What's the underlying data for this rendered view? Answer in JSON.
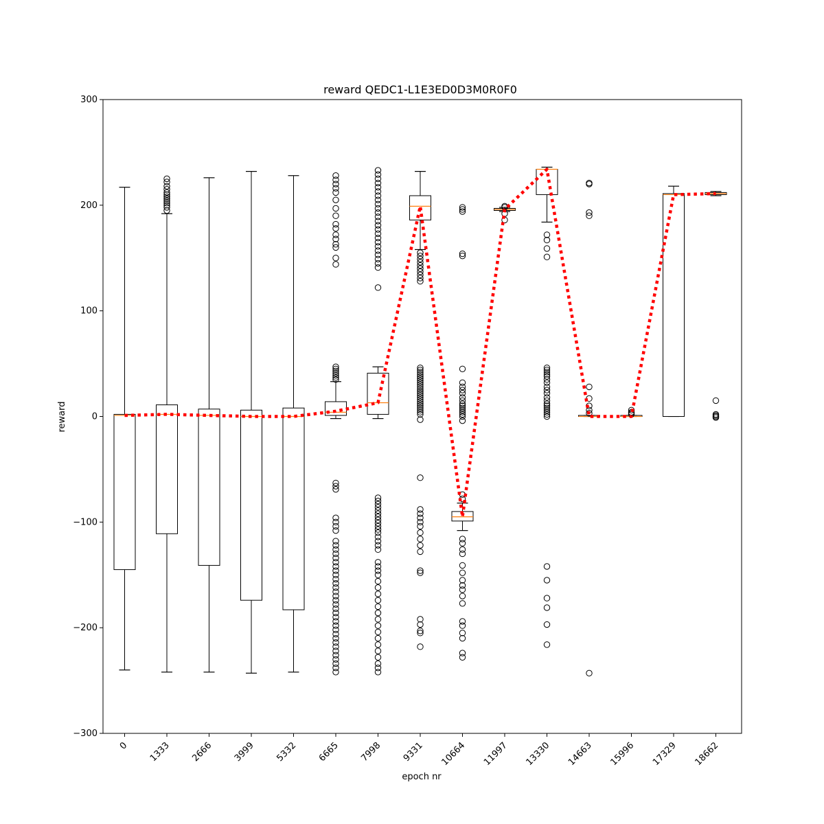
{
  "chart_data": {
    "type": "box",
    "title": "reward QEDC1-L1E3ED0D3M0R0F0",
    "xlabel": "epoch nr",
    "ylabel": "reward",
    "ylim": [
      -300,
      300
    ],
    "yticks": [
      -300,
      -200,
      -100,
      0,
      100,
      200,
      300
    ],
    "ytick_labels": [
      "−300",
      "−200",
      "−100",
      "0",
      "100",
      "200",
      "300"
    ],
    "categories": [
      "0",
      "1333",
      "2666",
      "3999",
      "5332",
      "6665",
      "7998",
      "9331",
      "10664",
      "11997",
      "13330",
      "14663",
      "15996",
      "17329",
      "18662"
    ],
    "boxes": [
      {
        "q1": -145,
        "median": 1,
        "q3": 2,
        "whisker_low": -240,
        "whisker_high": 217,
        "outliers": []
      },
      {
        "q1": -111,
        "median": 2,
        "q3": 11,
        "whisker_low": -242,
        "whisker_high": 192,
        "outliers": [
          195,
          198,
          200,
          202,
          204,
          206,
          208,
          210,
          212,
          215,
          218,
          222,
          225
        ]
      },
      {
        "q1": -141,
        "median": 1,
        "q3": 7,
        "whisker_low": -242,
        "whisker_high": 226,
        "outliers": []
      },
      {
        "q1": -174,
        "median": 0,
        "q3": 6,
        "whisker_low": -243,
        "whisker_high": 232,
        "outliers": []
      },
      {
        "q1": -183,
        "median": 0,
        "q3": 8,
        "whisker_low": -242,
        "whisker_high": 228,
        "outliers": []
      },
      {
        "q1": 1,
        "median": 4,
        "q3": 14,
        "whisker_low": -2,
        "whisker_high": 33,
        "outliers": [
          228,
          224,
          220,
          216,
          212,
          205,
          197,
          190,
          182,
          178,
          172,
          168,
          163,
          160,
          150,
          144,
          47,
          45,
          43,
          41,
          39,
          37,
          35,
          -63,
          -66,
          -69,
          -96,
          -100,
          -104,
          -108,
          -118,
          -122,
          -126,
          -130,
          -134,
          -138,
          -142,
          -146,
          -150,
          -154,
          -158,
          -162,
          -166,
          -170,
          -174,
          -178,
          -182,
          -186,
          -190,
          -194,
          -198,
          -202,
          -206,
          -210,
          -214,
          -218,
          -222,
          -226,
          -230,
          -234,
          -238,
          -242
        ]
      },
      {
        "q1": 2,
        "median": 13,
        "q3": 41,
        "whisker_low": -2,
        "whisker_high": 47,
        "outliers": [
          233,
          229,
          225,
          221,
          217,
          213,
          209,
          205,
          201,
          197,
          193,
          189,
          185,
          181,
          177,
          173,
          169,
          165,
          161,
          157,
          153,
          149,
          145,
          141,
          122,
          -77,
          -80,
          -83,
          -86,
          -89,
          -92,
          -95,
          -98,
          -101,
          -104,
          -107,
          -110,
          -114,
          -118,
          -122,
          -126,
          -138,
          -142,
          -146,
          -150,
          -156,
          -162,
          -168,
          -174,
          -180,
          -186,
          -192,
          -198,
          -204,
          -210,
          -216,
          -222,
          -228,
          -234,
          -238,
          -242
        ]
      },
      {
        "q1": 186,
        "median": 199,
        "q3": 209,
        "whisker_low": 158,
        "whisker_high": 232,
        "outliers": [
          155,
          152,
          149,
          146,
          143,
          140,
          137,
          134,
          131,
          128,
          46,
          44,
          42,
          40,
          38,
          36,
          34,
          32,
          30,
          28,
          26,
          24,
          22,
          20,
          18,
          16,
          14,
          12,
          10,
          8,
          6,
          4,
          2,
          -3,
          -58,
          -88,
          -92,
          -96,
          -100,
          -104,
          -110,
          -116,
          -122,
          -128,
          -146,
          -148,
          -192,
          -197,
          -203,
          -205,
          -218
        ]
      },
      {
        "q1": -99,
        "median": -95,
        "q3": -90,
        "whisker_low": -108,
        "whisker_high": -82,
        "outliers": [
          198,
          196,
          194,
          154,
          152,
          45,
          32,
          28,
          25,
          22,
          18,
          15,
          12,
          10,
          8,
          6,
          4,
          2,
          0,
          -4,
          -74,
          -78,
          -116,
          -120,
          -126,
          -130,
          -141,
          -148,
          -155,
          -160,
          -164,
          -170,
          -177,
          -194,
          -198,
          -205,
          -210,
          -224,
          -228
        ]
      },
      {
        "q1": 195,
        "median": 196,
        "q3": 197,
        "whisker_low": 194,
        "whisker_high": 198,
        "outliers": [
          186,
          192,
          198,
          199
        ]
      },
      {
        "q1": 210,
        "median": 234,
        "q3": 234,
        "whisker_low": 184,
        "whisker_high": 236,
        "outliers": [
          172,
          167,
          159,
          151,
          46,
          44,
          42,
          40,
          38,
          35,
          32,
          28,
          25,
          22,
          18,
          15,
          12,
          10,
          8,
          6,
          4,
          2,
          0,
          -142,
          -155,
          -172,
          -181,
          -197,
          -216
        ]
      },
      {
        "q1": 0,
        "median": 0,
        "q3": 1,
        "whisker_low": 0,
        "whisker_high": 1,
        "outliers": [
          221,
          220,
          193,
          190,
          28,
          17,
          10,
          6,
          3,
          -243
        ]
      },
      {
        "q1": 0,
        "median": 0,
        "q3": 1,
        "whisker_low": 0,
        "whisker_high": 1,
        "outliers": [
          6,
          4,
          3,
          2
        ]
      },
      {
        "q1": 0,
        "median": 210,
        "q3": 211,
        "whisker_low": 0,
        "whisker_high": 218,
        "outliers": []
      },
      {
        "q1": 210,
        "median": 211,
        "q3": 212,
        "whisker_low": 209,
        "whisker_high": 213,
        "outliers": [
          15,
          2,
          1,
          0,
          -1
        ]
      }
    ],
    "mean_line": {
      "values": [
        1,
        2,
        1,
        0,
        0,
        5,
        13,
        199,
        -95,
        196,
        234,
        0,
        0,
        210,
        211
      ],
      "color": "#ff0000",
      "style": "dotted"
    },
    "colors": {
      "box": "#000000",
      "median": "#ff7f0e",
      "mean_line": "#ff0000"
    },
    "grid": false
  }
}
